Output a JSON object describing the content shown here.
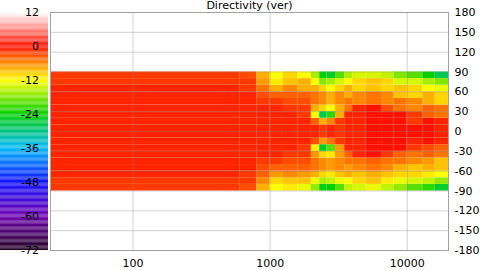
{
  "chart_data": {
    "type": "heatmap",
    "title": "Directivity (ver)",
    "log": "x",
    "grid": true,
    "xlim": [
      25,
      20000
    ],
    "xticks": [
      100,
      1000,
      10000
    ],
    "ylim": [
      -180,
      180
    ],
    "yticks": [
      -180,
      -150,
      -120,
      -90,
      -60,
      -30,
      0,
      30,
      60,
      90,
      120,
      150,
      180
    ],
    "x_bins": [
      25,
      600,
      800,
      1000,
      1250,
      1600,
      2000,
      2300,
      2600,
      3000,
      3500,
      4000,
      5000,
      6500,
      8000,
      10000,
      13000,
      16000,
      20000
    ],
    "y_bins": [
      -90,
      -80,
      -70,
      -60,
      -50,
      -40,
      -30,
      -20,
      -10,
      0,
      10,
      20,
      30,
      40,
      50,
      60,
      70,
      80,
      90
    ],
    "values": [
      [
        -2,
        -3,
        -8,
        -12,
        -11,
        -13,
        -17,
        -25,
        -24,
        -20,
        -15,
        -14,
        -13,
        -15,
        -17,
        -20,
        -22,
        -26
      ],
      [
        -2,
        -2,
        -6,
        -10,
        -9,
        -9,
        -13,
        -16,
        -15,
        -13,
        -12,
        -10,
        -9,
        -11,
        -13,
        -14,
        -15,
        -17
      ],
      [
        -1,
        -2,
        -4,
        -7,
        -6,
        -7,
        -8,
        -10,
        -11,
        -9,
        -8,
        -9,
        -8,
        -9,
        -10,
        -10,
        -11,
        -12
      ],
      [
        -1,
        -1,
        -3,
        -4,
        -4,
        -4,
        -5,
        -6,
        -7,
        -6,
        -7,
        -6,
        -5,
        -6,
        -8,
        -9,
        -8,
        -9
      ],
      [
        -1,
        -1,
        -2,
        -2,
        -3,
        -3,
        -5,
        -6,
        -7,
        -6,
        -5,
        -5,
        -4,
        -5,
        -5,
        -6,
        -7,
        -9
      ],
      [
        -1,
        -1,
        -1,
        -1,
        -2,
        -2,
        -7,
        -10,
        -11,
        -7,
        -4,
        -1,
        0,
        -2,
        -4,
        -5,
        -4,
        -5
      ],
      [
        -1,
        -1,
        -1,
        -1,
        -1,
        -2,
        -11,
        -26,
        -20,
        -7,
        -1,
        -1,
        0,
        0,
        0,
        -2,
        -3,
        -4
      ],
      [
        -1,
        -1,
        -1,
        -1,
        -1,
        -1,
        -3,
        -7,
        -5,
        -2,
        -1,
        -1,
        0,
        0,
        0,
        -1,
        0,
        -1
      ],
      [
        -1,
        -1,
        -1,
        -1,
        -1,
        -1,
        -1,
        -2,
        -1,
        -2,
        -1,
        -1,
        0,
        0,
        0,
        0,
        0,
        -1
      ],
      [
        -1,
        -1,
        -1,
        -1,
        -1,
        -1,
        -1,
        -2,
        -1,
        -2,
        -1,
        -1,
        0,
        0,
        0,
        0,
        0,
        -1
      ],
      [
        -1,
        -1,
        -1,
        -1,
        -1,
        -1,
        -4,
        -8,
        -6,
        -2,
        -1,
        -1,
        0,
        0,
        0,
        -2,
        0,
        -1
      ],
      [
        -1,
        -1,
        -1,
        -1,
        -1,
        -2,
        -12,
        -28,
        -22,
        -8,
        -1,
        -1,
        0,
        0,
        0,
        -2,
        -4,
        -5
      ],
      [
        -1,
        -1,
        -1,
        -1,
        -2,
        -2,
        -8,
        -10,
        -12,
        -8,
        -5,
        -1,
        0,
        -3,
        -5,
        -6,
        -4,
        -5
      ],
      [
        -1,
        -1,
        -2,
        -2,
        -3,
        -3,
        -5,
        -6,
        -8,
        -6,
        -5,
        -6,
        -5,
        -6,
        -5,
        -6,
        -8,
        -10
      ],
      [
        -1,
        -1,
        -3,
        -4,
        -4,
        -4,
        -5,
        -6,
        -8,
        -6,
        -8,
        -6,
        -5,
        -6,
        -9,
        -10,
        -8,
        -10
      ],
      [
        -1,
        -2,
        -5,
        -8,
        -6,
        -8,
        -8,
        -10,
        -12,
        -10,
        -8,
        -10,
        -9,
        -10,
        -9,
        -10,
        -12,
        -13
      ],
      [
        -2,
        -2,
        -7,
        -11,
        -9,
        -8,
        -12,
        -18,
        -16,
        -14,
        -12,
        -10,
        -9,
        -10,
        -14,
        -14,
        -16,
        -18
      ],
      [
        -2,
        -3,
        -8,
        -12,
        -10,
        -12,
        -16,
        -24,
        -26,
        -20,
        -16,
        -14,
        -14,
        -15,
        -18,
        -20,
        -24,
        -28
      ]
    ],
    "color_range": [
      -72,
      12
    ],
    "color_ticks": [
      12,
      0,
      -12,
      -24,
      -36,
      -48,
      -60,
      -72
    ]
  }
}
